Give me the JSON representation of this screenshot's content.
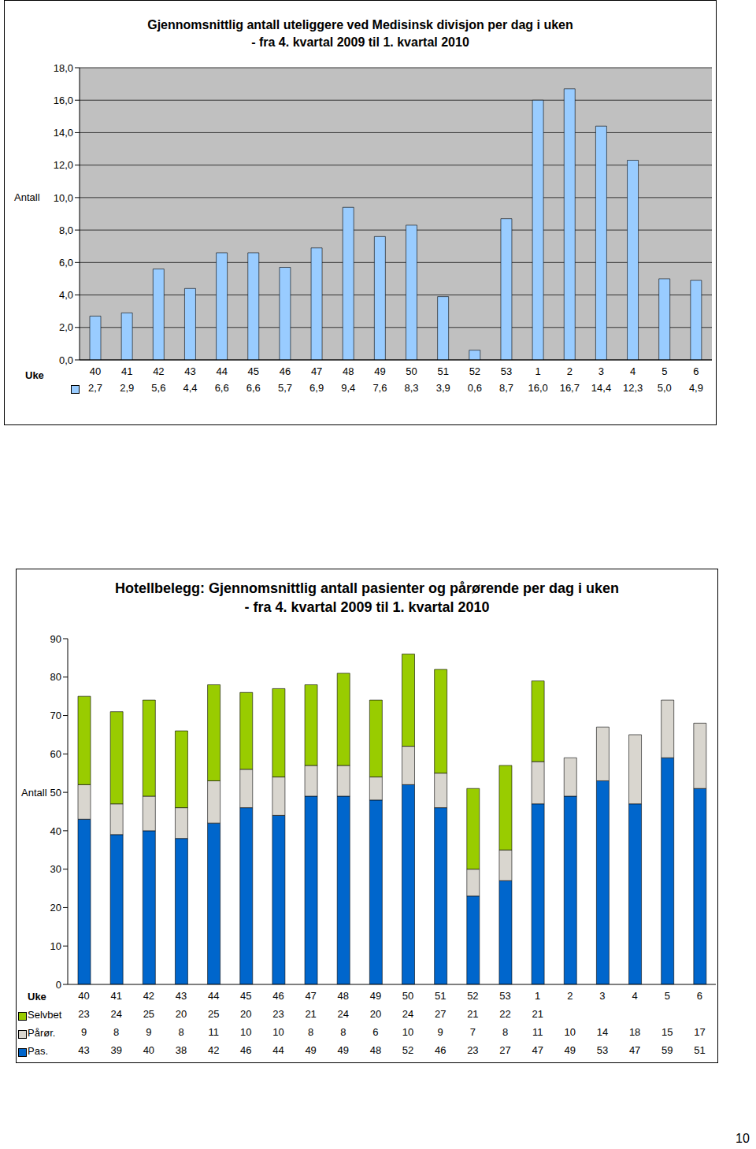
{
  "chart_data": [
    {
      "type": "bar",
      "title": "Gjennomsnittlig antall uteliggere ved Medisinsk divisjon per dag i uken\n- fra 4. kvartal 2009 til 1. kvartal 2010",
      "ylabel": "Antall",
      "xlabel": "Uke",
      "categories": [
        "40",
        "41",
        "42",
        "43",
        "44",
        "45",
        "46",
        "47",
        "48",
        "49",
        "50",
        "51",
        "52",
        "53",
        "1",
        "2",
        "3",
        "4",
        "5",
        "6"
      ],
      "values": [
        2.7,
        2.9,
        5.6,
        4.4,
        6.6,
        6.6,
        5.7,
        6.9,
        9.4,
        7.6,
        8.3,
        3.9,
        0.6,
        8.7,
        16.0,
        16.7,
        14.4,
        12.3,
        5.0,
        4.9
      ],
      "value_labels": [
        "2,7",
        "2,9",
        "5,6",
        "4,4",
        "6,6",
        "6,6",
        "5,7",
        "6,9",
        "9,4",
        "7,6",
        "8,3",
        "3,9",
        "0,6",
        "8,7",
        "16,0",
        "16,7",
        "14,4",
        "12,3",
        "5,0",
        "4,9"
      ],
      "color": "#99ccff",
      "ylim": [
        0,
        18
      ],
      "yticks": [
        {
          "value": 0,
          "label": "0,0"
        },
        {
          "value": 2,
          "label": "2,0"
        },
        {
          "value": 4,
          "label": "4,0"
        },
        {
          "value": 6,
          "label": "6,0"
        },
        {
          "value": 8,
          "label": "8,0"
        },
        {
          "value": 10,
          "label": "10,0"
        },
        {
          "value": 12,
          "label": "12,0"
        },
        {
          "value": 14,
          "label": "14,0"
        },
        {
          "value": 16,
          "label": "16,0"
        },
        {
          "value": 18,
          "label": "18,0"
        }
      ],
      "grid": true
    },
    {
      "type": "bar",
      "stacked": true,
      "title": "Hotellbelegg: Gjennomsnittlig antall pasienter og pårørende per dag i uken\n- fra 4. kvartal 2009 til 1. kvartal 2010",
      "ylabel": "Antall",
      "xlabel": "Uke",
      "categories": [
        "40",
        "41",
        "42",
        "43",
        "44",
        "45",
        "46",
        "47",
        "48",
        "49",
        "50",
        "51",
        "52",
        "53",
        "1",
        "2",
        "3",
        "4",
        "5",
        "6"
      ],
      "series": [
        {
          "name": "Selvbet",
          "color": "#99cc00",
          "values": [
            23,
            24,
            25,
            20,
            25,
            20,
            23,
            21,
            24,
            20,
            24,
            27,
            21,
            22,
            21,
            null,
            null,
            null,
            null,
            null
          ]
        },
        {
          "name": "Pårør.",
          "color": "#d9d6cf",
          "values": [
            9,
            8,
            9,
            8,
            11,
            10,
            10,
            8,
            8,
            6,
            10,
            9,
            7,
            8,
            11,
            10,
            14,
            18,
            15,
            17
          ]
        },
        {
          "name": "Pas.",
          "color": "#0066cc",
          "values": [
            43,
            39,
            40,
            38,
            42,
            46,
            44,
            49,
            49,
            48,
            52,
            46,
            23,
            27,
            47,
            49,
            53,
            47,
            59,
            51
          ]
        }
      ],
      "ylim": [
        0,
        90
      ],
      "yticks": [
        0,
        10,
        20,
        30,
        40,
        50,
        60,
        70,
        80,
        90
      ],
      "grid": false
    }
  ],
  "page_number": "10"
}
